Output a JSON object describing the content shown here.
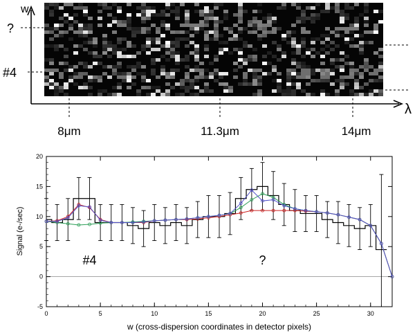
{
  "top_panel": {
    "y_axis_label": "w",
    "x_axis_label": "λ",
    "row_labels": [
      {
        "text": "?"
      },
      {
        "text": "#4"
      }
    ],
    "wavelength_marks": [
      {
        "text": "8μm"
      },
      {
        "text": "11.3μm"
      },
      {
        "text": "14μm"
      }
    ]
  },
  "chart_data": {
    "type": "line",
    "title": "",
    "xlabel": "w (cross-dispersion coordinates in detector pixels)",
    "ylabel": "Signal (e-/sec)",
    "xlim": [
      0,
      32
    ],
    "ylim": [
      -5,
      20
    ],
    "x_ticks": [
      0,
      5,
      10,
      15,
      20,
      25,
      30
    ],
    "y_ticks": [
      -5,
      0,
      5,
      10,
      15,
      20
    ],
    "zero_line": true,
    "annotations": [
      {
        "text": "#4",
        "x": 4,
        "y": 2
      },
      {
        "text": "?",
        "x": 20,
        "y": 2
      }
    ],
    "series": [
      {
        "style": "step",
        "color": "#000000",
        "x": [
          0,
          1,
          2,
          3,
          4,
          5,
          6,
          7,
          8,
          9,
          10,
          11,
          12,
          13,
          14,
          15,
          16,
          17,
          18,
          19,
          20,
          21,
          22,
          23,
          24,
          25,
          26,
          27,
          28,
          29,
          30,
          31
        ],
        "values": [
          9.5,
          9.0,
          9.5,
          13.0,
          13.0,
          9.0,
          9.0,
          9.0,
          8.5,
          8.0,
          9.0,
          8.5,
          9.0,
          8.5,
          9.5,
          10.0,
          10.0,
          10.5,
          13.0,
          14.5,
          15.0,
          13.5,
          12.0,
          11.0,
          10.5,
          10.5,
          9.5,
          9.0,
          8.5,
          8.0,
          8.5,
          4.5
        ],
        "errors": [
          3.5,
          3.0,
          3.5,
          3.5,
          3.5,
          3.0,
          3.0,
          3.0,
          3.0,
          3.0,
          3.0,
          3.0,
          3.0,
          3.0,
          3.0,
          3.5,
          3.5,
          3.5,
          3.5,
          3.5,
          4.0,
          4.0,
          3.5,
          3.5,
          3.0,
          3.0,
          3.0,
          3.5,
          3.5,
          3.5,
          3.5,
          12.5
        ]
      },
      {
        "style": "line",
        "color": "#cc2020",
        "x": [
          0,
          1,
          2,
          3,
          4,
          5,
          6,
          7,
          8,
          9,
          10,
          11,
          12,
          13,
          14,
          15,
          16,
          17,
          18,
          19,
          20,
          21,
          22,
          23,
          24,
          25,
          26,
          27,
          28,
          29,
          30,
          31,
          32
        ],
        "values": [
          9.2,
          9.3,
          10.0,
          12.0,
          11.5,
          9.5,
          9.0,
          9.0,
          9.0,
          9.0,
          9.3,
          9.4,
          9.5,
          9.5,
          9.6,
          9.8,
          10.0,
          10.3,
          10.6,
          11.0,
          11.0,
          11.0,
          11.0,
          11.0,
          10.9,
          10.8,
          10.6,
          10.3,
          9.9,
          9.5,
          8.5,
          5.5,
          0.0
        ]
      },
      {
        "style": "line",
        "color": "#2a9d55",
        "x": [
          0,
          1,
          2,
          3,
          4,
          5,
          6,
          7,
          8,
          9,
          10,
          11,
          12,
          13,
          14,
          15,
          16,
          17,
          18,
          19,
          20,
          21,
          22,
          23,
          24,
          25,
          26,
          27,
          28,
          29,
          30,
          31,
          32
        ],
        "values": [
          9.2,
          9.0,
          8.8,
          8.6,
          8.7,
          8.9,
          9.0,
          9.0,
          9.1,
          9.2,
          9.3,
          9.4,
          9.5,
          9.6,
          9.8,
          10.0,
          10.2,
          10.5,
          11.5,
          12.8,
          13.8,
          13.2,
          12.0,
          11.3,
          11.0,
          10.8,
          10.6,
          10.3,
          9.9,
          9.5,
          8.5,
          5.5,
          0.0
        ]
      },
      {
        "style": "line",
        "color": "#5050c8",
        "x": [
          0,
          1,
          2,
          3,
          4,
          5,
          6,
          7,
          8,
          9,
          10,
          11,
          12,
          13,
          14,
          15,
          16,
          17,
          18,
          19,
          20,
          21,
          22,
          23,
          24,
          25,
          26,
          27,
          28,
          29,
          30,
          31,
          32
        ],
        "values": [
          9.2,
          9.2,
          9.8,
          11.8,
          11.6,
          9.4,
          9.0,
          9.0,
          9.0,
          9.1,
          9.3,
          9.4,
          9.5,
          9.6,
          9.8,
          10.0,
          10.2,
          10.5,
          12.2,
          14.4,
          12.6,
          12.8,
          11.8,
          11.3,
          11.0,
          10.8,
          10.6,
          10.3,
          9.9,
          9.5,
          8.5,
          5.5,
          0.0
        ]
      }
    ]
  }
}
